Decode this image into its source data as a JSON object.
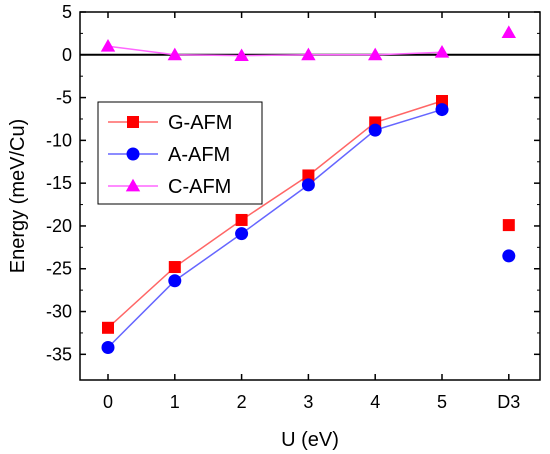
{
  "chart_data": {
    "type": "line",
    "xlabel": "U (eV)",
    "ylabel": "Energy (meV/Cu)",
    "categories": [
      "0",
      "1",
      "2",
      "3",
      "4",
      "5",
      "D3"
    ],
    "ylim": [
      -38,
      5
    ],
    "yticks": [
      5,
      0,
      -5,
      -10,
      -15,
      -20,
      -25,
      -30,
      -35
    ],
    "zero_line": true,
    "legend_position": "upper-left",
    "series": [
      {
        "name": "G-AFM",
        "color": "#ff0000",
        "line_color": "#ff6666",
        "marker": "square",
        "values": [
          -31.9,
          -24.8,
          -19.3,
          -14.1,
          -7.9,
          -5.4,
          -19.9
        ],
        "connected": [
          true,
          true,
          true,
          true,
          true,
          true,
          false
        ]
      },
      {
        "name": "A-AFM",
        "color": "#0000ff",
        "line_color": "#6666ff",
        "marker": "circle",
        "values": [
          -34.2,
          -26.4,
          -20.9,
          -15.2,
          -8.8,
          -6.4,
          -23.5
        ],
        "connected": [
          true,
          true,
          true,
          true,
          true,
          true,
          false
        ]
      },
      {
        "name": "C-AFM",
        "color": "#ff00ff",
        "line_color": "#ff66ff",
        "marker": "triangle",
        "values": [
          1.0,
          0.0,
          -0.1,
          0.0,
          0.0,
          0.3,
          2.6
        ],
        "connected": [
          true,
          true,
          true,
          true,
          true,
          true,
          false
        ]
      }
    ]
  }
}
